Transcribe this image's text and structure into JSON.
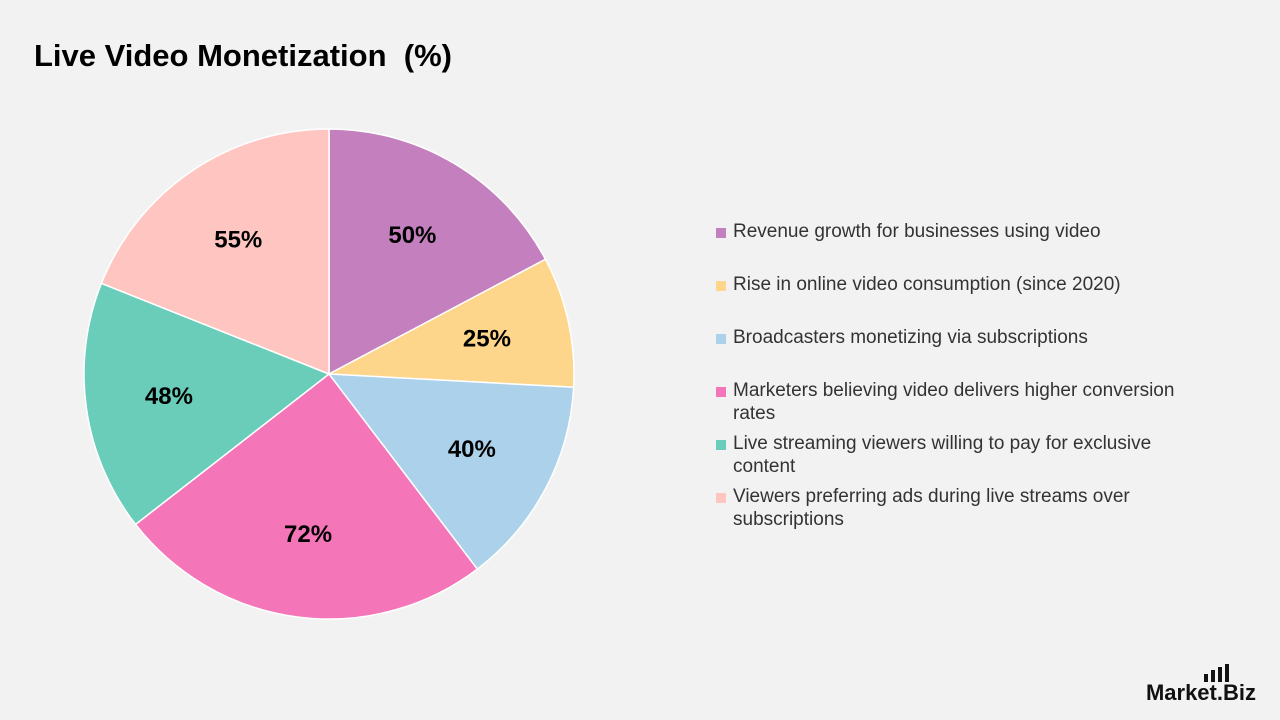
{
  "title": "Live Video Monetization  (%)",
  "chart_data": {
    "type": "pie",
    "title": "Live Video Monetization  (%)",
    "unit": "%",
    "categories": [
      "Revenue growth for businesses using video",
      "Rise in online video consumption (since 2020)",
      "Broadcasters monetizing via subscriptions",
      "Marketers believing video delivers higher conversion rates",
      "Live streaming viewers willing to pay for exclusive content",
      "Viewers preferring ads during live streams over subscriptions"
    ],
    "values": [
      50,
      25,
      40,
      72,
      48,
      55
    ],
    "data_labels": [
      "50%",
      "25%",
      "40%",
      "72%",
      "48%",
      "55%"
    ],
    "colors": [
      "#c47fbe",
      "#fdd58b",
      "#abd1eb",
      "#f475b8",
      "#69cdb9",
      "#ffc5c0"
    ],
    "legend_position": "right",
    "start_angle": "12 o'clock",
    "direction": "clockwise"
  },
  "logo": {
    "text": "Market.Biz"
  }
}
